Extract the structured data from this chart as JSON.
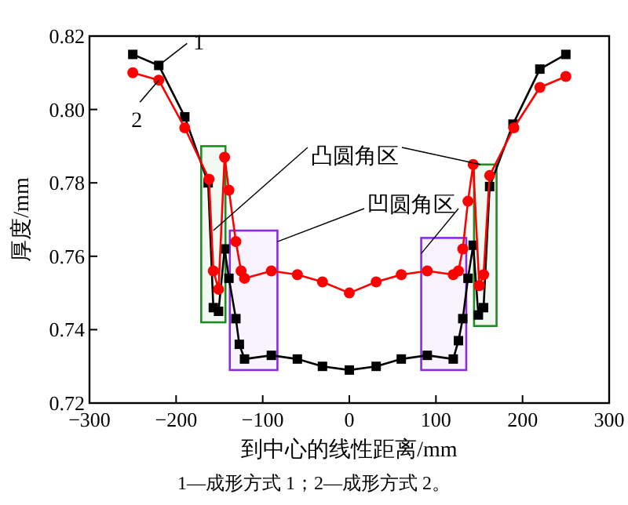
{
  "chart_data": {
    "type": "line",
    "xlabel": "到中心的线性距离/mm",
    "ylabel": "厚度/mm",
    "xlim": [
      -300,
      300
    ],
    "xticks": [
      -300,
      -200,
      -100,
      0,
      100,
      200,
      300
    ],
    "ylim": [
      0.72,
      0.82
    ],
    "yticks": [
      {
        "value": 0.72,
        "label": "0.72"
      },
      {
        "value": 0.74,
        "label": "0.74"
      },
      {
        "value": 0.76,
        "label": "0.76"
      },
      {
        "value": 0.78,
        "label": "0.78"
      },
      {
        "value": 0.8,
        "label": "0.80"
      },
      {
        "value": 0.82,
        "label": "0.82"
      }
    ],
    "grid": false,
    "legend": "top left",
    "series": [
      {
        "name": "1",
        "color": "#000000",
        "marker": "square",
        "x": [
          -250,
          -220,
          -190,
          -163,
          -157,
          -151,
          -144,
          -139,
          -131,
          -127,
          -121,
          -90,
          -60,
          -31,
          0,
          31,
          60,
          90,
          120,
          126,
          131,
          137,
          143,
          149,
          155,
          162,
          189,
          220,
          250
        ],
        "values": [
          0.815,
          0.812,
          0.798,
          0.78,
          0.746,
          0.745,
          0.762,
          0.754,
          0.743,
          0.736,
          0.732,
          0.733,
          0.732,
          0.73,
          0.729,
          0.73,
          0.732,
          0.733,
          0.732,
          0.737,
          0.743,
          0.754,
          0.763,
          0.744,
          0.746,
          0.779,
          0.796,
          0.811,
          0.815
        ]
      },
      {
        "name": "2",
        "color": "#ff0000",
        "marker": "circle",
        "x": [
          -250,
          -220,
          -190,
          -162,
          -157,
          -151,
          -144,
          -139,
          -131,
          -125,
          -121,
          -90,
          -60,
          -31,
          0,
          31,
          60,
          90,
          120,
          126,
          131,
          137,
          143,
          150,
          155,
          162,
          190,
          220,
          250
        ],
        "values": [
          0.81,
          0.808,
          0.795,
          0.781,
          0.756,
          0.751,
          0.787,
          0.778,
          0.764,
          0.756,
          0.754,
          0.756,
          0.755,
          0.753,
          0.75,
          0.753,
          0.755,
          0.756,
          0.755,
          0.756,
          0.762,
          0.775,
          0.785,
          0.752,
          0.755,
          0.782,
          0.795,
          0.806,
          0.809
        ]
      }
    ],
    "bands": [
      {
        "axis": "x",
        "from": -171,
        "to": -143,
        "color": "#228b22"
      },
      {
        "axis": "x",
        "from": 144,
        "to": 170,
        "color": "#228b22"
      },
      {
        "axis": "x",
        "from": -138,
        "to": -83,
        "color": "#8a2be2"
      },
      {
        "axis": "x",
        "from": 83,
        "to": 135,
        "color": "#8a2be2"
      }
    ],
    "annotations": [
      {
        "text": "凸圆角区",
        "x": -157,
        "y": 0.767
      },
      {
        "text": "凹圆角区",
        "x": -83,
        "y": 0.764
      },
      "1—成形方式 1；2—成形方式 2。"
    ]
  }
}
